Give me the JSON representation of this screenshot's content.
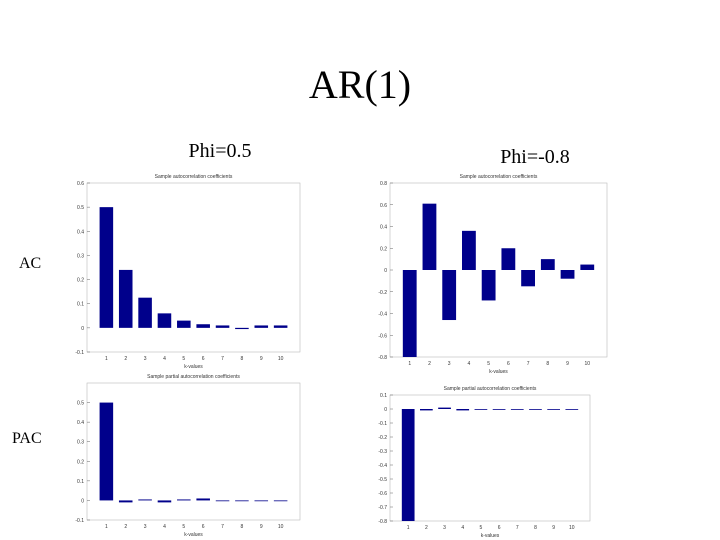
{
  "title": "AR(1)",
  "columns": [
    "Phi=0.5",
    "Phi=-0.8"
  ],
  "rows": [
    "AC",
    "PAC"
  ],
  "chart_data": [
    {
      "type": "bar",
      "title": "Sample autocorrelation coefficients",
      "xlabel": "k-values",
      "categories": [
        "1",
        "2",
        "3",
        "4",
        "5",
        "6",
        "7",
        "8",
        "9",
        "10"
      ],
      "values": [
        0.5,
        0.24,
        0.125,
        0.06,
        0.03,
        0.015,
        0.01,
        -0.005,
        0.01,
        0.01
      ],
      "color": "#00008b",
      "ylim": [
        -0.1,
        0.6
      ],
      "yticks": [
        -0.1,
        0,
        0.1,
        0.2,
        0.3,
        0.4,
        0.5,
        0.6
      ]
    },
    {
      "type": "bar",
      "title": "Sample autocorrelation coefficients",
      "xlabel": "k-values",
      "categories": [
        "1",
        "2",
        "3",
        "4",
        "5",
        "6",
        "7",
        "8",
        "9",
        "10"
      ],
      "values": [
        -0.8,
        0.61,
        -0.46,
        0.36,
        -0.28,
        0.2,
        -0.15,
        0.1,
        -0.08,
        0.05
      ],
      "color": "#00008b",
      "ylim": [
        -0.8,
        0.8
      ],
      "yticks": [
        -0.8,
        -0.6,
        -0.4,
        -0.2,
        0,
        0.2,
        0.4,
        0.6,
        0.8
      ]
    },
    {
      "type": "bar",
      "title": "Sample partial autocorrelation coefficients",
      "xlabel": "k-values",
      "categories": [
        "1",
        "2",
        "3",
        "4",
        "5",
        "6",
        "7",
        "8",
        "9",
        "10"
      ],
      "values": [
        0.5,
        -0.01,
        0.005,
        -0.01,
        0.005,
        0.01,
        0,
        0,
        0,
        0
      ],
      "color": "#00008b",
      "ylim": [
        -0.1,
        0.6
      ],
      "yticks": [
        -0.1,
        0,
        0.1,
        0.2,
        0.3,
        0.4,
        0.5
      ]
    },
    {
      "type": "bar",
      "title": "Sample partial autocorrelation coefficients",
      "xlabel": "k-values",
      "categories": [
        "1",
        "2",
        "3",
        "4",
        "5",
        "6",
        "7",
        "8",
        "9",
        "10"
      ],
      "values": [
        -0.8,
        -0.01,
        0.01,
        -0.01,
        0,
        0,
        0,
        0,
        0,
        0
      ],
      "color": "#00008b",
      "ylim": [
        -0.8,
        0.1
      ],
      "yticks": [
        -0.8,
        -0.7,
        -0.6,
        -0.5,
        -0.4,
        -0.3,
        -0.2,
        -0.1,
        0,
        0.1
      ]
    }
  ]
}
